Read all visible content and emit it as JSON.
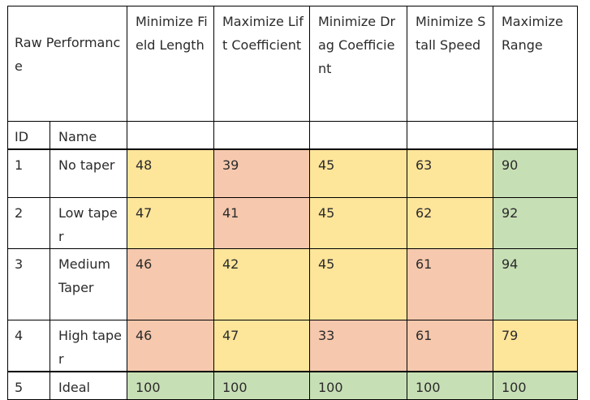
{
  "header": {
    "raw_performance": "Raw Performance",
    "columns": [
      "Minimize Field Length",
      "Maximize Lift Coefficient",
      "Minimize Drag Coefficient",
      "Minimize Stall Speed",
      "Maximize Range"
    ],
    "id_label": "ID",
    "name_label": "Name"
  },
  "colors": {
    "yellow": "#fde59a",
    "red": "#f6c8ad",
    "green": "#c7dfb5"
  },
  "rows": [
    {
      "id": "1",
      "name": "No taper",
      "values": [
        "48",
        "39",
        "45",
        "63",
        "90"
      ],
      "shades": [
        "yellow",
        "red",
        "yellow",
        "yellow",
        "green"
      ]
    },
    {
      "id": "2",
      "name": "Low taper",
      "values": [
        "47",
        "41",
        "45",
        "62",
        "92"
      ],
      "shades": [
        "yellow",
        "red",
        "yellow",
        "yellow",
        "green"
      ]
    },
    {
      "id": "3",
      "name": "Medium Taper",
      "values": [
        "46",
        "42",
        "45",
        "61",
        "94"
      ],
      "shades": [
        "red",
        "yellow",
        "yellow",
        "red",
        "green"
      ]
    },
    {
      "id": "4",
      "name": "High taper",
      "values": [
        "46",
        "47",
        "33",
        "61",
        "79"
      ],
      "shades": [
        "red",
        "yellow",
        "red",
        "red",
        "yellow"
      ]
    },
    {
      "id": "5",
      "name": "Ideal",
      "values": [
        "100",
        "100",
        "100",
        "100",
        "100"
      ],
      "shades": [
        "green",
        "green",
        "green",
        "green",
        "green"
      ]
    }
  ]
}
